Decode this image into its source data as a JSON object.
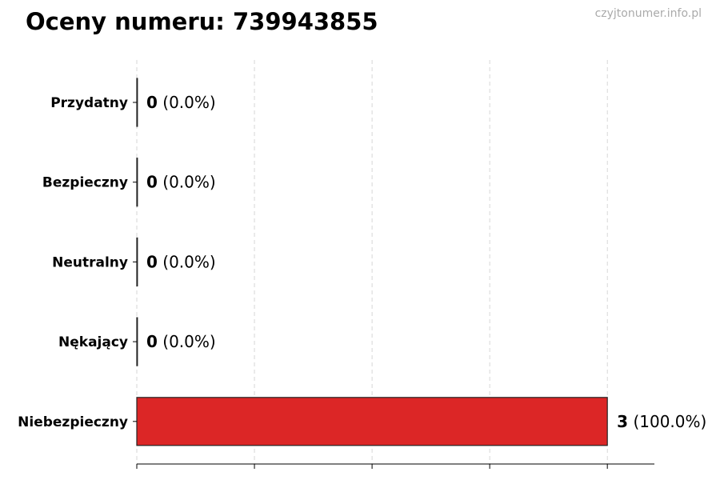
{
  "header": {
    "title": "Oceny numeru: 739943855",
    "watermark": "czyjtonumer.info.pl"
  },
  "chart_data": {
    "type": "bar",
    "orientation": "horizontal",
    "categories": [
      "Przydatny",
      "Bezpieczny",
      "Neutralny",
      "Nękający",
      "Niebezpieczny"
    ],
    "values": [
      0,
      0,
      0,
      0,
      3
    ],
    "percent_labels": [
      "(0.0%)",
      "(0.0%)",
      "(0.0%)",
      "(0.0%)",
      "(100.0%)"
    ],
    "xlim": [
      0,
      3.3
    ],
    "xticks": [
      0,
      0.75,
      1.5,
      2.25,
      3
    ],
    "xtick_labels_shown": false,
    "grid": "vertical dashed",
    "bar_color": "#dc2626",
    "edge_color": "#222222"
  }
}
